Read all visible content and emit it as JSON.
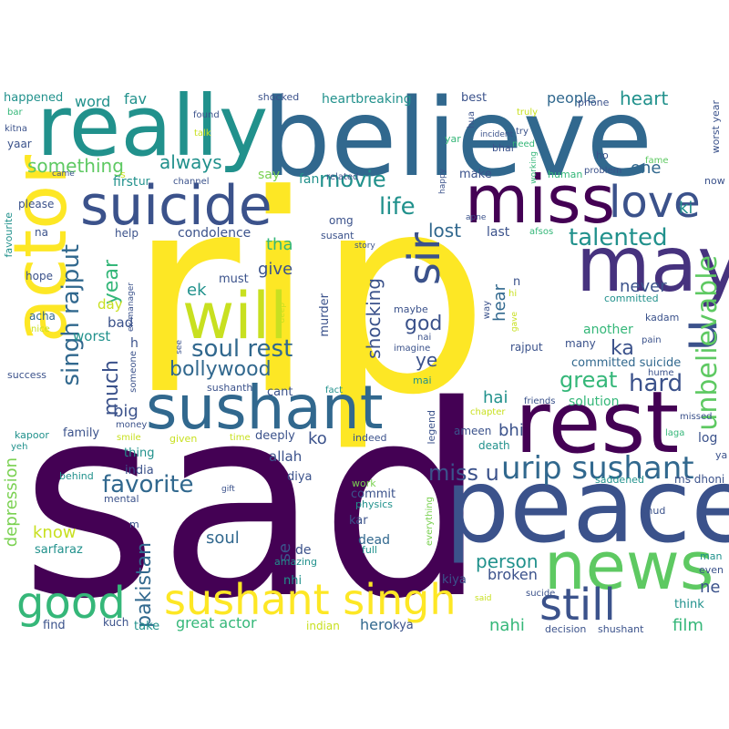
{
  "words": [
    {
      "text": "sad",
      "color": "#440154"
    },
    {
      "text": "rip",
      "color": "#fde725"
    },
    {
      "text": "peace",
      "color": "#3b528b"
    },
    {
      "text": "believe",
      "color": "#31688e"
    },
    {
      "text": "really",
      "color": "#21918c"
    },
    {
      "text": "rest",
      "color": "#440154"
    },
    {
      "text": "actor",
      "color": "#fde725"
    },
    {
      "text": "may",
      "color": "#46327e"
    },
    {
      "text": "miss",
      "color": "#440154"
    },
    {
      "text": "suicide",
      "color": "#3b528b"
    },
    {
      "text": "sushant",
      "color": "#31688e"
    },
    {
      "text": "will",
      "color": "#c8e020"
    },
    {
      "text": "news",
      "color": "#5ec962"
    },
    {
      "text": "sushant singh",
      "color": "#fde725"
    },
    {
      "text": "good",
      "color": "#35b779"
    },
    {
      "text": "still",
      "color": "#3b528b"
    },
    {
      "text": "love",
      "color": "#3b528b"
    },
    {
      "text": "sir",
      "color": "#3b528b"
    },
    {
      "text": "u",
      "color": "#3b528b"
    },
    {
      "text": "urip sushant",
      "color": "#31688e"
    },
    {
      "text": "unbelievable",
      "color": "#5ec962"
    },
    {
      "text": "soul rest",
      "color": "#31688e"
    },
    {
      "text": "bollywood",
      "color": "#31688e"
    },
    {
      "text": "talented",
      "color": "#21918c"
    },
    {
      "text": "favorite",
      "color": "#31688e"
    },
    {
      "text": "hard",
      "color": "#3b528b"
    },
    {
      "text": "movie",
      "color": "#21918c"
    },
    {
      "text": "life",
      "color": "#21918c"
    },
    {
      "text": "lost",
      "color": "#31688e"
    },
    {
      "text": "miss u",
      "color": "#3b528b"
    },
    {
      "text": "singh rajput",
      "color": "#31688e"
    },
    {
      "text": "pakistan",
      "color": "#31688e"
    },
    {
      "text": "year",
      "color": "#35b779"
    },
    {
      "text": "much",
      "color": "#3b528b"
    },
    {
      "text": "heart",
      "color": "#21918c"
    },
    {
      "text": "something",
      "color": "#5ec962"
    },
    {
      "text": "always",
      "color": "#21918c"
    },
    {
      "text": "shocking",
      "color": "#3b528b"
    },
    {
      "text": "god",
      "color": "#3b528b"
    },
    {
      "text": "great",
      "color": "#35b779"
    },
    {
      "text": "never",
      "color": "#3b528b"
    },
    {
      "text": "ye",
      "color": "#3b528b"
    },
    {
      "text": "hai",
      "color": "#21918c"
    },
    {
      "text": "bhi",
      "color": "#3b528b"
    },
    {
      "text": "ka",
      "color": "#3b528b"
    },
    {
      "text": "ki",
      "color": "#21918c"
    },
    {
      "text": "one",
      "color": "#31688e"
    },
    {
      "text": "hear",
      "color": "#31688e"
    },
    {
      "text": "give",
      "color": "#3b528b"
    },
    {
      "text": "tha",
      "color": "#35b779"
    },
    {
      "text": "ek",
      "color": "#21918c"
    },
    {
      "text": "big",
      "color": "#3b528b"
    },
    {
      "text": "person",
      "color": "#21918c"
    },
    {
      "text": "depression",
      "color": "#7ad151"
    },
    {
      "text": "know",
      "color": "#c8e020"
    },
    {
      "text": "se",
      "color": "#3b528b"
    },
    {
      "text": "soul",
      "color": "#31688e"
    },
    {
      "text": "broken",
      "color": "#3b528b"
    },
    {
      "text": "nahi",
      "color": "#35b779"
    },
    {
      "text": "film",
      "color": "#35b779"
    },
    {
      "text": "great actor",
      "color": "#35b779"
    },
    {
      "text": "hero",
      "color": "#31688e"
    },
    {
      "text": "ko",
      "color": "#3b528b"
    },
    {
      "text": "ne",
      "color": "#3b528b"
    },
    {
      "text": "word",
      "color": "#21918c"
    },
    {
      "text": "fav",
      "color": "#21918c"
    },
    {
      "text": "happened",
      "color": "#21918c"
    },
    {
      "text": "people",
      "color": "#31688e"
    },
    {
      "text": "best",
      "color": "#3b528b"
    },
    {
      "text": "heartbreaking",
      "color": "#21918c"
    },
    {
      "text": "shocked",
      "color": "#3b528b"
    },
    {
      "text": "condolence",
      "color": "#3b528b"
    },
    {
      "text": "first",
      "color": "#21918c"
    },
    {
      "text": "fan",
      "color": "#21918c"
    },
    {
      "text": "say",
      "color": "#7ad151"
    },
    {
      "text": "make",
      "color": "#3b528b"
    },
    {
      "text": "last",
      "color": "#3b528b"
    },
    {
      "text": "day",
      "color": "#c8e020"
    },
    {
      "text": "bad",
      "color": "#3b528b"
    },
    {
      "text": "worst",
      "color": "#21918c"
    },
    {
      "text": "must",
      "color": "#3b528b"
    },
    {
      "text": "murder",
      "color": "#3b528b"
    },
    {
      "text": "cant",
      "color": "#3b528b"
    },
    {
      "text": "deeply",
      "color": "#3b528b"
    },
    {
      "text": "allah",
      "color": "#3b528b"
    },
    {
      "text": "diya",
      "color": "#3b528b"
    },
    {
      "text": "kar",
      "color": "#3b528b"
    },
    {
      "text": "commit",
      "color": "#3b528b"
    },
    {
      "text": "dead",
      "color": "#31688e"
    },
    {
      "text": "de",
      "color": "#3b528b"
    },
    {
      "text": "nhi",
      "color": "#21918c"
    },
    {
      "text": "kiya",
      "color": "#3b528b"
    },
    {
      "text": "committed suicide",
      "color": "#31688e"
    },
    {
      "text": "solution",
      "color": "#35b779"
    },
    {
      "text": "another",
      "color": "#35b779"
    },
    {
      "text": "many",
      "color": "#3b528b"
    },
    {
      "text": "family",
      "color": "#3b528b"
    },
    {
      "text": "india",
      "color": "#3b528b"
    },
    {
      "text": "thing",
      "color": "#21918c"
    },
    {
      "text": "take",
      "color": "#21918c"
    },
    {
      "text": "find",
      "color": "#3b528b"
    },
    {
      "text": "kuch",
      "color": "#3b528b"
    },
    {
      "text": "sarfaraz",
      "color": "#21918c"
    },
    {
      "text": "think",
      "color": "#21918c"
    },
    {
      "text": "help",
      "color": "#3b528b"
    },
    {
      "text": "omg",
      "color": "#3b528b"
    },
    {
      "text": "susant",
      "color": "#3b528b"
    },
    {
      "text": "please",
      "color": "#3b528b"
    },
    {
      "text": "hope",
      "color": "#3b528b"
    },
    {
      "text": "acha",
      "color": "#31688e"
    },
    {
      "text": "na",
      "color": "#3b528b"
    },
    {
      "text": "yaar",
      "color": "#3b528b"
    },
    {
      "text": "sushanth",
      "color": "#3b528b"
    },
    {
      "text": "maybe",
      "color": "#3b528b"
    },
    {
      "text": "indeed",
      "color": "#3b528b"
    },
    {
      "text": "ameen",
      "color": "#3b528b"
    },
    {
      "text": "death",
      "color": "#21918c"
    },
    {
      "text": "log",
      "color": "#3b528b"
    },
    {
      "text": "rajput",
      "color": "#3b528b"
    },
    {
      "text": "kadam",
      "color": "#3b528b"
    },
    {
      "text": "hume",
      "color": "#3b528b"
    },
    {
      "text": "committed",
      "color": "#21918c"
    },
    {
      "text": "yar",
      "color": "#35b779"
    },
    {
      "text": "bhai",
      "color": "#3b528b"
    },
    {
      "text": "human",
      "color": "#35b779"
    },
    {
      "text": "fame",
      "color": "#5ec962"
    },
    {
      "text": "phone",
      "color": "#3b528b"
    },
    {
      "text": "ho",
      "color": "#3b528b"
    },
    {
      "text": "problem",
      "color": "#3b528b"
    },
    {
      "text": "worst year",
      "color": "#3b528b"
    },
    {
      "text": "now",
      "color": "#3b528b"
    },
    {
      "text": "pain",
      "color": "#3b528b"
    },
    {
      "text": "missed",
      "color": "#3b528b"
    },
    {
      "text": "laga",
      "color": "#35b779"
    },
    {
      "text": "ya",
      "color": "#3b528b"
    },
    {
      "text": "ms dhoni",
      "color": "#3b528b"
    },
    {
      "text": "saddened",
      "color": "#21918c"
    },
    {
      "text": "khud",
      "color": "#3b528b"
    },
    {
      "text": "man",
      "color": "#21918c"
    },
    {
      "text": "even",
      "color": "#3b528b"
    },
    {
      "text": "sucide",
      "color": "#3b528b"
    },
    {
      "text": "decision",
      "color": "#3b528b"
    },
    {
      "text": "shushant",
      "color": "#3b528b"
    },
    {
      "text": "indian",
      "color": "#c8e020"
    },
    {
      "text": "kya",
      "color": "#3b528b"
    },
    {
      "text": "amazing",
      "color": "#21918c"
    },
    {
      "text": "full",
      "color": "#21918c"
    },
    {
      "text": "physics",
      "color": "#21918c"
    },
    {
      "text": "everything",
      "color": "#7ad151"
    },
    {
      "text": "work",
      "color": "#7ad151"
    },
    {
      "text": "legend",
      "color": "#3b528b"
    },
    {
      "text": "chapter",
      "color": "#c8e020"
    },
    {
      "text": "friends",
      "color": "#3b528b"
    },
    {
      "text": "fact",
      "color": "#21918c"
    },
    {
      "text": "time",
      "color": "#c8e020"
    },
    {
      "text": "given",
      "color": "#c8e020"
    },
    {
      "text": "smile",
      "color": "#c8e020"
    },
    {
      "text": "money",
      "color": "#3b528b"
    },
    {
      "text": "someone",
      "color": "#3b528b"
    },
    {
      "text": "see",
      "color": "#3b528b"
    },
    {
      "text": "ex manager",
      "color": "#3b528b"
    },
    {
      "text": "gift",
      "color": "#3b528b"
    },
    {
      "text": "behind",
      "color": "#21918c"
    },
    {
      "text": "mental",
      "color": "#3b528b"
    },
    {
      "text": "success",
      "color": "#3b528b"
    },
    {
      "text": "kapoor",
      "color": "#21918c"
    },
    {
      "text": "yeh",
      "color": "#21918c"
    },
    {
      "text": "nice",
      "color": "#c8e020"
    },
    {
      "text": "favourite",
      "color": "#21918c"
    },
    {
      "text": "came",
      "color": "#3b528b"
    },
    {
      "text": "kitna",
      "color": "#3b528b"
    },
    {
      "text": "bar",
      "color": "#35b779"
    },
    {
      "text": "ur",
      "color": "#21918c"
    },
    {
      "text": "channel",
      "color": "#3b528b"
    },
    {
      "text": "talk",
      "color": "#c8e020"
    },
    {
      "text": "found",
      "color": "#3b528b"
    },
    {
      "text": "related",
      "color": "#3b528b"
    },
    {
      "text": "story",
      "color": "#3b528b"
    },
    {
      "text": "apne",
      "color": "#3b528b"
    },
    {
      "text": "afsos",
      "color": "#35b779"
    },
    {
      "text": "hua",
      "color": "#3b528b"
    },
    {
      "text": "incident",
      "color": "#3b528b"
    },
    {
      "text": "try",
      "color": "#3b528b"
    },
    {
      "text": "truly",
      "color": "#c8e020"
    },
    {
      "text": "need",
      "color": "#35b779"
    },
    {
      "text": "working",
      "color": "#35b779"
    },
    {
      "text": "way",
      "color": "#3b528b"
    },
    {
      "text": "gave",
      "color": "#c8e020"
    },
    {
      "text": "hi",
      "color": "#c8e020"
    },
    {
      "text": "n",
      "color": "#3b528b"
    },
    {
      "text": "deep",
      "color": "#c8e020"
    },
    {
      "text": "imagine",
      "color": "#3b528b"
    },
    {
      "text": "nai",
      "color": "#3b528b"
    },
    {
      "text": "mai",
      "color": "#21918c"
    },
    {
      "text": "said",
      "color": "#c8e020"
    },
    {
      "text": "happy",
      "color": "#3b528b"
    },
    {
      "text": "h",
      "color": "#3b528b"
    },
    {
      "text": "m",
      "color": "#3b528b"
    },
    {
      "text": "s",
      "color": "#c8e020"
    }
  ]
}
